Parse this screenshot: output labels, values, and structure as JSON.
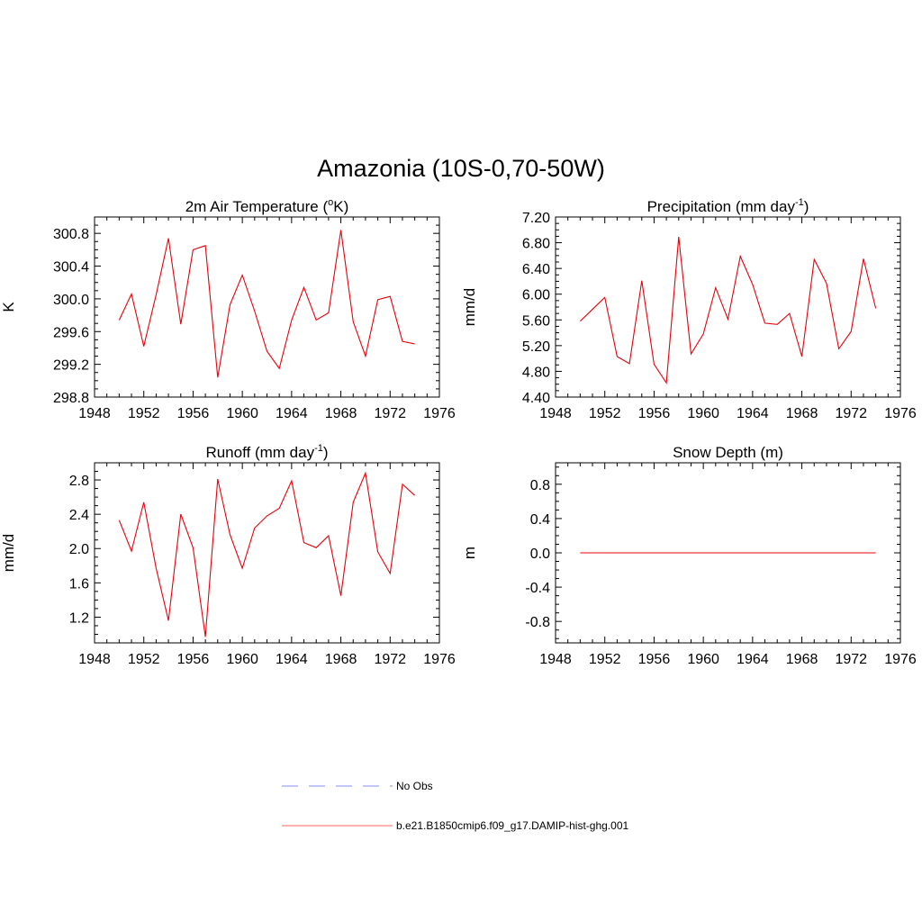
{
  "title": "Amazonia (10S-0,70-50W)",
  "colors": {
    "model": "#e8000b",
    "obs": "#a0a0ff",
    "axes": "#000000"
  },
  "legend": [
    {
      "label": "No Obs",
      "style": "dashed",
      "color": "#a0a0ff"
    },
    {
      "label": "b.e21.B1850cmip6.f09_g17.DAMIP-hist-ghg.001",
      "style": "solid",
      "color": "#ff8080"
    }
  ],
  "chart_data": [
    {
      "type": "line",
      "title_main": "2m Air Temperature (",
      "title_sup_pre": "o",
      "title_mid": "K)",
      "title_sup": "",
      "title_end": "",
      "ylabel": "K",
      "xlim": [
        1948,
        1976
      ],
      "ylim": [
        298.8,
        301.0
      ],
      "xticks": [
        1948,
        1952,
        1956,
        1960,
        1964,
        1968,
        1972,
        1976
      ],
      "yticks": [
        298.8,
        299.2,
        299.6,
        300.0,
        300.4,
        300.8
      ],
      "ytick_labels": [
        "298.8",
        "299.2",
        "299.6",
        "300.0",
        "300.4",
        "300.8"
      ],
      "series": [
        {
          "x": [
            1950,
            1951,
            1952,
            1953,
            1954,
            1955,
            1956,
            1957,
            1958,
            1959,
            1960,
            1961,
            1962,
            1963,
            1964,
            1965,
            1966,
            1967,
            1968,
            1969,
            1970,
            1971,
            1972,
            1973,
            1974
          ],
          "values": [
            299.74,
            300.06,
            299.42,
            300.05,
            300.74,
            299.69,
            300.6,
            300.65,
            299.04,
            299.93,
            300.29,
            299.85,
            299.36,
            299.15,
            299.74,
            300.14,
            299.74,
            299.83,
            300.84,
            299.72,
            299.3,
            299.99,
            300.03,
            299.48,
            299.45
          ]
        }
      ]
    },
    {
      "type": "line",
      "title_main": "Precipitation (mm day",
      "title_sup_pre": "",
      "title_mid": "",
      "title_sup": "-1",
      "title_end": ")",
      "ylabel": "mm/d",
      "xlim": [
        1948,
        1976
      ],
      "ylim": [
        4.4,
        7.2
      ],
      "xticks": [
        1948,
        1952,
        1956,
        1960,
        1964,
        1968,
        1972,
        1976
      ],
      "yticks": [
        4.4,
        4.8,
        5.2,
        5.6,
        6.0,
        6.4,
        6.8,
        7.2
      ],
      "ytick_labels": [
        "4.40",
        "4.80",
        "5.20",
        "5.60",
        "6.00",
        "6.40",
        "6.80",
        "7.20"
      ],
      "series": [
        {
          "x": [
            1950,
            1952,
            1953,
            1954,
            1955,
            1956,
            1957,
            1958,
            1959,
            1960,
            1961,
            1962,
            1963,
            1964,
            1965,
            1966,
            1967,
            1968,
            1969,
            1970,
            1971,
            1972,
            1973,
            1974
          ],
          "values": [
            5.58,
            5.95,
            5.03,
            4.92,
            6.21,
            4.91,
            4.62,
            6.89,
            5.07,
            5.38,
            6.1,
            5.61,
            6.59,
            6.15,
            5.55,
            5.53,
            5.7,
            5.03,
            6.54,
            6.17,
            5.15,
            5.42,
            6.55,
            5.78
          ]
        }
      ]
    },
    {
      "type": "line",
      "title_main": "Runoff (mm day",
      "title_sup_pre": "",
      "title_mid": "",
      "title_sup": "-1",
      "title_end": ")",
      "ylabel": "mm/d",
      "xlim": [
        1948,
        1976
      ],
      "ylim": [
        0.9,
        3.0
      ],
      "xticks": [
        1948,
        1952,
        1956,
        1960,
        1964,
        1968,
        1972,
        1976
      ],
      "yticks": [
        1.2,
        1.6,
        2.0,
        2.4,
        2.8
      ],
      "ytick_labels": [
        "1.2",
        "1.6",
        "2.0",
        "2.4",
        "2.8"
      ],
      "series": [
        {
          "x": [
            1950,
            1951,
            1952,
            1953,
            1954,
            1955,
            1956,
            1957,
            1958,
            1959,
            1960,
            1961,
            1962,
            1963,
            1964,
            1965,
            1966,
            1967,
            1968,
            1969,
            1970,
            1971,
            1972,
            1973,
            1974
          ],
          "values": [
            2.33,
            1.97,
            2.54,
            1.77,
            1.16,
            2.4,
            2.01,
            0.97,
            2.81,
            2.16,
            1.77,
            2.24,
            2.38,
            2.47,
            2.79,
            2.07,
            2.01,
            2.15,
            1.45,
            2.54,
            2.88,
            1.96,
            1.71,
            2.75,
            2.62
          ]
        }
      ]
    },
    {
      "type": "line",
      "title_main": "Snow Depth (m)",
      "title_sup_pre": "",
      "title_mid": "",
      "title_sup": "",
      "title_end": "",
      "ylabel": "m",
      "xlim": [
        1948,
        1976
      ],
      "ylim": [
        -1.05,
        1.05
      ],
      "xticks": [
        1948,
        1952,
        1956,
        1960,
        1964,
        1968,
        1972,
        1976
      ],
      "yticks": [
        -0.8,
        -0.4,
        0.0,
        0.4,
        0.8
      ],
      "ytick_labels": [
        "-0.8",
        "-0.4",
        "0.0",
        "0.4",
        "0.8"
      ],
      "series": [
        {
          "x": [
            1950,
            1974
          ],
          "values": [
            0.0,
            0.0
          ]
        }
      ]
    }
  ]
}
